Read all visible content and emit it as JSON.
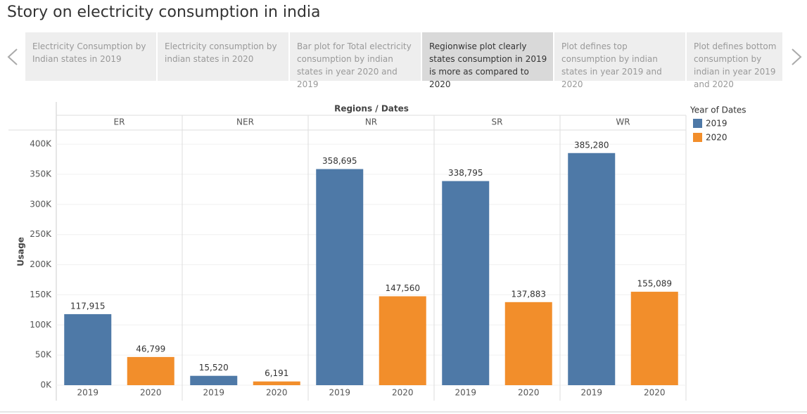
{
  "title": "Story on electricity consumption in india",
  "story_points": [
    "Electricity Consumption by Indian states in 2019",
    "Electricity consumption by indian states in 2020",
    "Bar plot for Total electricity consumption by indian states in year 2020 and 2019",
    "Regionwise plot clearly states consumption in 2019 is more as compared to 2020",
    "Plot defines top consumption by indian states in year 2019 and 2020",
    "Plot defines bottom consumption by indian in year 2019 and 2020"
  ],
  "chart_data": {
    "type": "bar",
    "column_header": "Regions / Dates",
    "categories": [
      "ER",
      "NER",
      "NR",
      "SR",
      "WR"
    ],
    "y_label": "Usage",
    "legend_title": "Year of Dates",
    "series": [
      {
        "name": "2019",
        "color": "#4e79a7",
        "values": [
          117915,
          15520,
          358695,
          338795,
          385280
        ],
        "value_labels": [
          "117,915",
          "15,520",
          "358,695",
          "338,795",
          "385,280"
        ]
      },
      {
        "name": "2020",
        "color": "#f28e2b",
        "values": [
          46799,
          6191,
          147560,
          137883,
          155089
        ],
        "value_labels": [
          "46,799",
          "6,191",
          "147,560",
          "137,883",
          "155,089"
        ]
      }
    ],
    "ylim": [
      0,
      420000
    ],
    "yticks": [
      {
        "value": 0,
        "label": "0K"
      },
      {
        "value": 50000,
        "label": "50K"
      },
      {
        "value": 100000,
        "label": "100K"
      },
      {
        "value": 150000,
        "label": "150K"
      },
      {
        "value": 200000,
        "label": "200K"
      },
      {
        "value": 250000,
        "label": "250K"
      },
      {
        "value": 300000,
        "label": "300K"
      },
      {
        "value": 350000,
        "label": "350K"
      },
      {
        "value": 400000,
        "label": "400K"
      }
    ],
    "grid": true
  }
}
